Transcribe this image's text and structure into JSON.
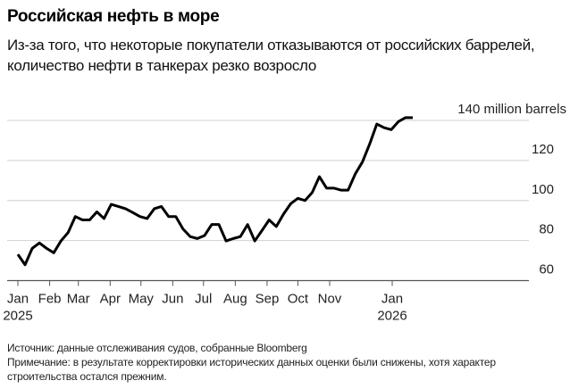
{
  "header": {
    "title": "Российская нефть в море",
    "subtitle": "Из-за того, что некоторые покупатели отказываются от российских баррелей, количество нефти в танкерах резко возросло"
  },
  "footer": {
    "source": "Источник: данные отслеживания судов, собранные Bloomberg",
    "note": "Примечание: в результате корректировки исторических данных оценки были снижены, хотя характер строительства остался прежним."
  },
  "chart_data": {
    "type": "line",
    "title": "Российская нефть в море",
    "ylabel": "",
    "unit_label": "140 million barrels",
    "ylim": [
      60,
      140
    ],
    "yticks": [
      60,
      80,
      100,
      120,
      140
    ],
    "ytick_labels": [
      "60",
      "80",
      "100",
      "120",
      "140 million barrels"
    ],
    "xlim": [
      "2025-01-01",
      "2026-01-21"
    ],
    "xticks": [
      {
        "date": "2025-01-01",
        "label": "Jan",
        "sub": "2025"
      },
      {
        "date": "2025-02-01",
        "label": "Feb"
      },
      {
        "date": "2025-03-01",
        "label": "Mar"
      },
      {
        "date": "2025-04-01",
        "label": "Apr"
      },
      {
        "date": "2025-05-01",
        "label": "May"
      },
      {
        "date": "2025-06-01",
        "label": "Jun"
      },
      {
        "date": "2025-07-01",
        "label": "Jul"
      },
      {
        "date": "2025-08-01",
        "label": "Aug"
      },
      {
        "date": "2025-09-01",
        "label": "Sep"
      },
      {
        "date": "2025-10-01",
        "label": "Oct"
      },
      {
        "date": "2025-11-01",
        "label": "Nov"
      },
      {
        "date": "2026-01-01",
        "label": "Jan",
        "sub": "2026"
      }
    ],
    "grid": true,
    "line_color": "#000000",
    "grid_color": "#d0d0d0",
    "start_date": "2025-01-01",
    "interval": "weekly",
    "values": [
      73.1,
      67.9,
      76.1,
      78.8,
      76.1,
      73.9,
      79.8,
      84,
      92,
      90.3,
      90.3,
      94.3,
      91,
      98.1,
      97,
      95.9,
      94,
      92,
      91,
      95.9,
      97,
      92,
      92,
      85.8,
      82,
      81,
      82.5,
      88,
      88,
      79.8,
      81,
      82,
      88,
      79.8,
      85,
      90.3,
      87,
      93.2,
      98.4,
      101.1,
      100,
      104,
      111.9,
      106.2,
      106.2,
      105.2,
      105.2,
      113.3,
      119.3,
      128.2,
      138.2,
      136.4,
      135.4,
      139.4,
      141.4,
      141.4
    ]
  }
}
